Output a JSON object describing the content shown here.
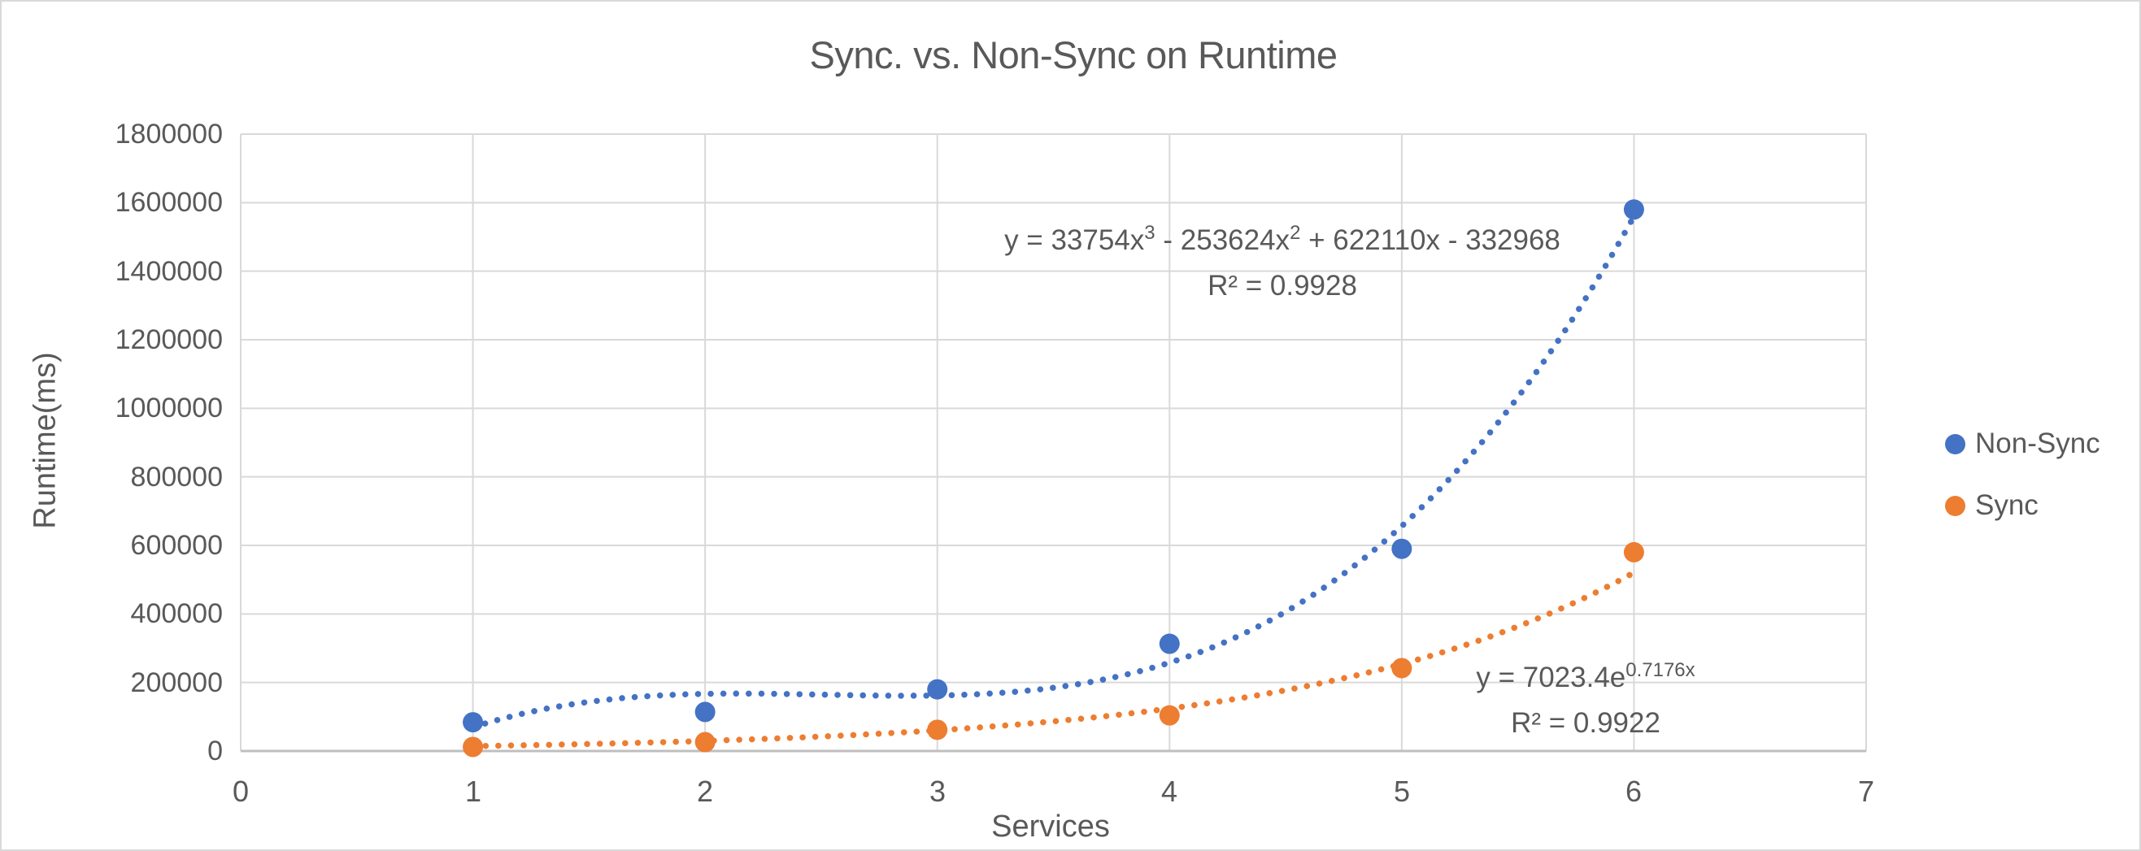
{
  "chart_data": {
    "type": "scatter",
    "title": "Sync. vs. Non-Sync on Runtime",
    "xlabel": "Services",
    "ylabel": "Runtime(ms)",
    "xlim": [
      0,
      7
    ],
    "ylim": [
      0,
      1800000
    ],
    "grid": true,
    "legend_position": "right-middle",
    "x_ticks": [
      "0",
      "1",
      "2",
      "3",
      "4",
      "5",
      "6",
      "7"
    ],
    "y_ticks": [
      "0",
      "200000",
      "400000",
      "600000",
      "800000",
      "1000000",
      "1200000",
      "1400000",
      "1600000",
      "1800000"
    ],
    "x": [
      1,
      2,
      3,
      4,
      5,
      6
    ],
    "series": [
      {
        "name": "Non-Sync",
        "color": "#4472C4",
        "marker": "circle",
        "values": [
          84000,
          114000,
          180000,
          313000,
          590000,
          1580000
        ],
        "trendline": {
          "kind": "polynomial",
          "degree": 3,
          "coeffs": [
            33754,
            -253624,
            622110,
            -332968
          ],
          "range": [
            1,
            6
          ],
          "style": "dotted",
          "equation": {
            "p1": "y = 33754x",
            "s1": "3",
            "p2": " - 253624x",
            "s2": "2",
            "p3": " + 622110x - 332968"
          },
          "r2": "R² = 0.9928"
        }
      },
      {
        "name": "Sync",
        "color": "#ED7D31",
        "marker": "circle",
        "values": [
          12000,
          26000,
          62000,
          104000,
          242000,
          580000
        ],
        "trendline": {
          "kind": "exponential",
          "a": 7023.4,
          "b": 0.7176,
          "range": [
            1,
            6
          ],
          "style": "dotted",
          "equation": {
            "base": "y = 7023.4e",
            "exp": "0.7176x"
          },
          "r2": "R² = 0.9922"
        }
      }
    ],
    "colors": {
      "gridline": "#D9D9D9",
      "axis_line": "#BFBFBF",
      "text": "#595959"
    }
  },
  "legend": {
    "items": [
      {
        "label": "Non-Sync",
        "color": "#4472C4"
      },
      {
        "label": "Sync",
        "color": "#ED7D31"
      }
    ]
  }
}
